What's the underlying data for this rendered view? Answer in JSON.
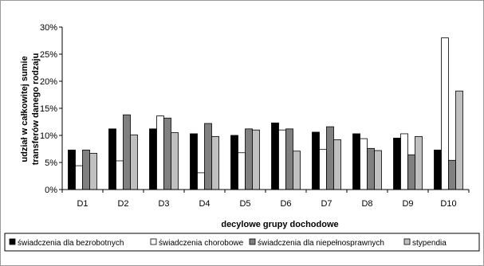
{
  "chart_data": {
    "type": "bar",
    "categories": [
      "D1",
      "D2",
      "D3",
      "D4",
      "D5",
      "D6",
      "D7",
      "D8",
      "D9",
      "D10"
    ],
    "series": [
      {
        "name": "świadczenia dla bezrobotnych",
        "color": "#000000",
        "values": [
          7.3,
          11.2,
          11.2,
          10.3,
          10.0,
          12.3,
          10.6,
          10.3,
          9.5,
          7.3
        ]
      },
      {
        "name": "świadczenia chorobowe",
        "color": "#ffffff",
        "values": [
          4.4,
          5.3,
          13.6,
          3.1,
          6.8,
          11.0,
          7.4,
          9.4,
          10.3,
          28.0
        ]
      },
      {
        "name": "świadczenia dla niepełnosprawnych",
        "color": "#808080",
        "values": [
          7.3,
          13.8,
          13.2,
          12.2,
          11.2,
          11.2,
          11.6,
          7.6,
          6.4,
          5.4
        ]
      },
      {
        "name": "stypendia",
        "color": "#c0c0c0",
        "values": [
          6.7,
          10.1,
          10.5,
          9.8,
          11.0,
          7.1,
          9.2,
          7.2,
          9.8,
          18.2
        ]
      }
    ],
    "ylim": [
      0,
      30
    ],
    "yticks": [
      0,
      5,
      10,
      15,
      20,
      25,
      30
    ],
    "ytick_labels": [
      "0%",
      "5%",
      "10%",
      "15%",
      "20%",
      "25%",
      "30%"
    ],
    "xlabel": "decylowe grupy dochodowe",
    "ylabel_lines": [
      "udział w całkowitej sumie",
      "transferów danego rodzaju"
    ],
    "legend_position": "bottom",
    "grid": false
  }
}
